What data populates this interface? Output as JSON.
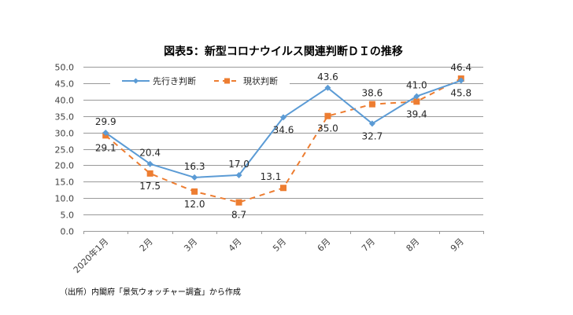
{
  "chart_data": {
    "type": "line",
    "title": "図表5：新型コロナウイルス関連判断ＤＩの推移",
    "xlabel": "",
    "ylabel": "",
    "categories": [
      "2020年1月",
      "2月",
      "3月",
      "4月",
      "5月",
      "6月",
      "7月",
      "8月",
      "9月"
    ],
    "ylim": [
      0,
      50
    ],
    "yticks": [
      "0.0",
      "5.0",
      "10.0",
      "15.0",
      "20.0",
      "25.0",
      "30.0",
      "35.0",
      "40.0",
      "45.0",
      "50.0"
    ],
    "ytick_values": [
      0,
      5,
      10,
      15,
      20,
      25,
      30,
      35,
      40,
      45,
      50
    ],
    "grid": true,
    "legend_position": "top-left",
    "series": [
      {
        "name": "先行き判断",
        "color": "#5B9BD5",
        "line_style": "solid",
        "marker": "diamond",
        "values": [
          29.9,
          20.4,
          16.3,
          17.0,
          34.6,
          43.6,
          32.7,
          41.0,
          45.8
        ],
        "labels": [
          "29.9",
          "20.4",
          "16.3",
          "17.0",
          "34.6",
          "43.6",
          "32.7",
          "41.0",
          "45.8"
        ],
        "label_side": [
          "above",
          "above",
          "above",
          "above",
          "below",
          "above",
          "below",
          "above",
          "below"
        ]
      },
      {
        "name": "現状判断",
        "color": "#ED7D31",
        "line_style": "dashed",
        "marker": "square",
        "values": [
          29.1,
          17.5,
          12.0,
          8.7,
          13.1,
          35.0,
          38.6,
          39.4,
          46.4
        ],
        "labels": [
          "29.1",
          "17.5",
          "12.0",
          "8.7",
          "13.1",
          "35.0",
          "38.6",
          "39.4",
          "46.4"
        ],
        "label_side": [
          "below",
          "below",
          "below",
          "below",
          "above-left",
          "below",
          "above",
          "below",
          "above"
        ]
      }
    ]
  },
  "source_note": "（出所）内閣府「景気ウォッチャー調査」から作成"
}
